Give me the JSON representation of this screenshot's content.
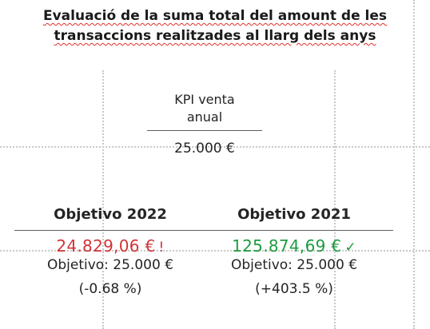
{
  "title": {
    "line1": "Evaluació de la suma total del amount de les",
    "line2": "transaccions realitzades al llarg dels anys"
  },
  "kpi": {
    "label_line1": "KPI venta",
    "label_line2": "anual",
    "value": "25.000 €"
  },
  "cards": [
    {
      "heading": "Objetivo 2022",
      "value": "24.829,06 €",
      "status_glyph": "!",
      "status_color": "#d13438",
      "target": "Objetivo: 25.000 €",
      "change": "(-0.68 %)"
    },
    {
      "heading": "Objetivo 2021",
      "value": "125.874,69 €",
      "status_glyph": "✓",
      "status_color": "#1e9a3f",
      "target": "Objetivo: 25.000 €",
      "change": "(+403.5 %)"
    }
  ]
}
